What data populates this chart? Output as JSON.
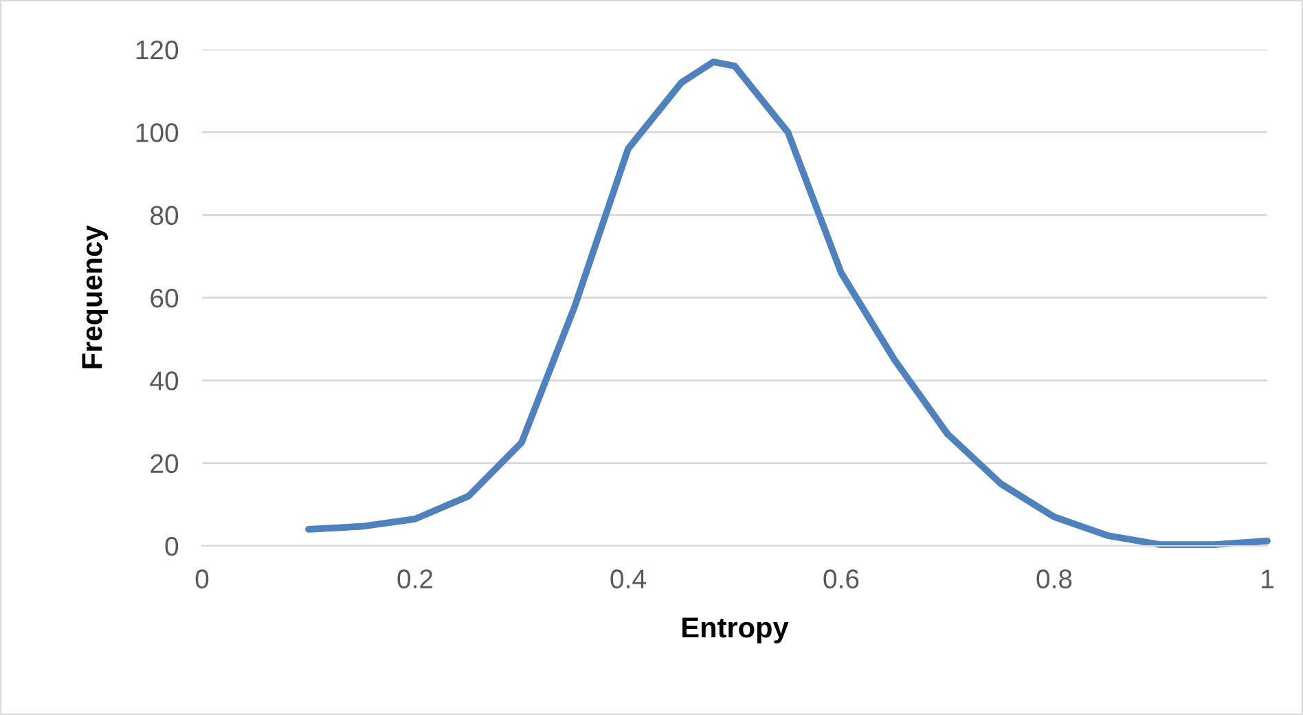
{
  "chart_data": {
    "type": "line",
    "xlabel": "Entropy",
    "ylabel": "Frequency",
    "x": [
      0.1,
      0.15,
      0.2,
      0.25,
      0.3,
      0.35,
      0.4,
      0.45,
      0.48,
      0.5,
      0.55,
      0.6,
      0.65,
      0.7,
      0.75,
      0.8,
      0.85,
      0.9,
      0.95,
      1.0
    ],
    "series": [
      {
        "color": "#4f81bd",
        "values": [
          4,
          4.7,
          6.5,
          12,
          25,
          58,
          96,
          112,
          117,
          116,
          100,
          66,
          45,
          27,
          15,
          7,
          2.5,
          0.3,
          0.3,
          1.2
        ]
      }
    ],
    "xlim": [
      0,
      1
    ],
    "xticks": [
      0,
      0.2,
      0.4,
      0.6,
      0.8,
      1
    ],
    "ylim": [
      0,
      120
    ],
    "yticks": [
      0,
      20,
      40,
      60,
      80,
      100,
      120
    ],
    "grid": "y",
    "legend": false,
    "marker": "none",
    "line_style": "solid"
  }
}
